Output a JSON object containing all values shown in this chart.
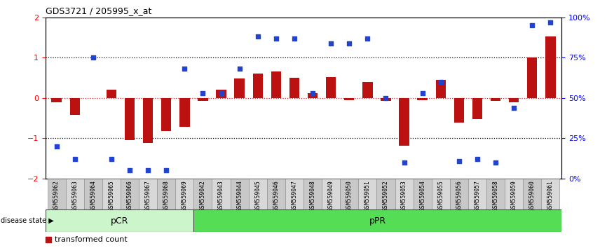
{
  "title": "GDS3721 / 205995_x_at",
  "samples": [
    "GSM559062",
    "GSM559063",
    "GSM559064",
    "GSM559065",
    "GSM559066",
    "GSM559067",
    "GSM559068",
    "GSM559069",
    "GSM559042",
    "GSM559043",
    "GSM559044",
    "GSM559045",
    "GSM559046",
    "GSM559047",
    "GSM559048",
    "GSM559049",
    "GSM559050",
    "GSM559051",
    "GSM559052",
    "GSM559053",
    "GSM559054",
    "GSM559055",
    "GSM559056",
    "GSM559057",
    "GSM559058",
    "GSM559059",
    "GSM559060",
    "GSM559061"
  ],
  "transformed_count": [
    -0.1,
    -0.42,
    0.0,
    0.2,
    -1.05,
    -1.12,
    -0.82,
    -0.72,
    -0.08,
    0.2,
    0.48,
    0.6,
    0.65,
    0.5,
    0.12,
    0.52,
    -0.05,
    0.4,
    -0.08,
    -1.18,
    -0.05,
    0.45,
    -0.62,
    -0.52,
    -0.08,
    -0.1,
    1.0,
    1.52
  ],
  "percentile_rank": [
    20,
    12,
    75,
    12,
    5,
    5,
    5,
    68,
    53,
    53,
    68,
    88,
    87,
    87,
    53,
    84,
    84,
    87,
    50,
    10,
    53,
    60,
    11,
    12,
    10,
    44,
    95,
    97
  ],
  "pcr_count": 8,
  "bar_color": "#bb1111",
  "dot_color": "#2244cc",
  "pcr_facecolor": "#ccf5cc",
  "ppr_facecolor": "#55dd55",
  "ylim_left": [
    -2.0,
    2.0
  ],
  "ylim_right": [
    0,
    100
  ],
  "yticks_left": [
    -2,
    -1,
    0,
    1,
    2
  ],
  "yticks_right": [
    0,
    25,
    50,
    75,
    100
  ],
  "ytick_labels_right": [
    "0%",
    "25%",
    "50%",
    "75%",
    "100%"
  ]
}
